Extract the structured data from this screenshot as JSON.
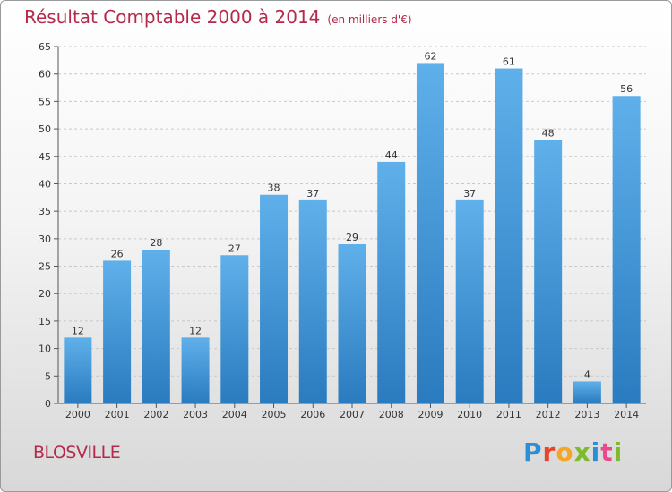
{
  "header": {
    "title": "Résultat Comptable 2000 à 2014",
    "subtitle": "(en milliers d'€)"
  },
  "location": "BLOSVILLE",
  "logo": {
    "text": "Proxiti",
    "letters": [
      "P",
      "r",
      "o",
      "x",
      "i",
      "t",
      "i"
    ]
  },
  "colors": {
    "bar_light": "#5fb0ea",
    "bar_dark": "#2a7bbf",
    "title": "#b5294a",
    "grid": "#c8c8c8"
  },
  "chart_data": {
    "type": "bar",
    "title": "Résultat Comptable 2000 à 2014",
    "subtitle": "(en milliers d'€)",
    "categories": [
      "2000",
      "2001",
      "2002",
      "2003",
      "2004",
      "2005",
      "2006",
      "2007",
      "2008",
      "2009",
      "2010",
      "2011",
      "2012",
      "2013",
      "2014"
    ],
    "values": [
      12,
      26,
      28,
      12,
      27,
      38,
      37,
      29,
      44,
      62,
      37,
      61,
      48,
      4,
      56
    ],
    "yticks": [
      0,
      5,
      10,
      15,
      20,
      25,
      30,
      35,
      40,
      45,
      50,
      55,
      60,
      65
    ],
    "ylim": [
      0,
      65
    ],
    "xlabel": "",
    "ylabel": "",
    "grid": "horizontal dashed"
  }
}
